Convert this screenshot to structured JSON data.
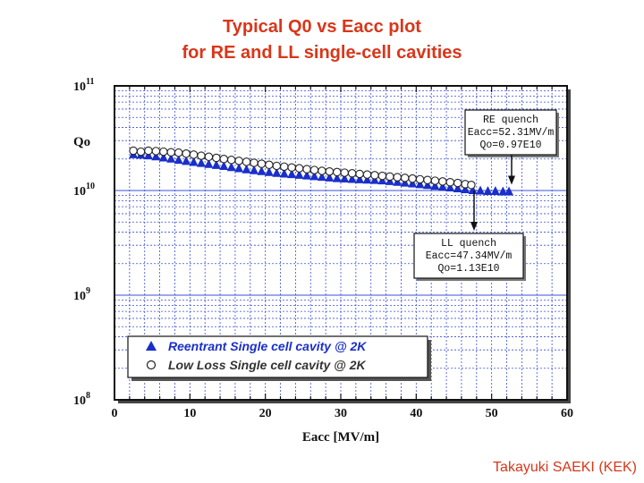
{
  "slide": {
    "title_line1": "Typical Q0 vs Eacc plot",
    "title_line2": "for RE and LL single-cell cavities",
    "credit": "Takayuki SAEKI (KEK)"
  },
  "colors": {
    "title": "#d9361a",
    "grid": "#3b4fd8",
    "reentrant_marker": "#1a2fc9",
    "lowloss_marker_fill": "#ffffff",
    "lowloss_legend_text": "#333333",
    "reentrant_legend_text": "#1a2fc9"
  },
  "chart_data": {
    "type": "scatter",
    "y_scale": "log",
    "xlabel": "Eacc [MV/m]",
    "ylabel": "Qo",
    "xlim": [
      0,
      60
    ],
    "ylim": [
      100000000.0,
      100000000000.0
    ],
    "x_ticks": [
      "0",
      "10",
      "20",
      "30",
      "40",
      "50",
      "60"
    ],
    "y_ticks": [
      {
        "base": "10",
        "exp": "11",
        "value": 100000000000.0
      },
      {
        "base": "10",
        "exp": "10",
        "value": 10000000000.0
      },
      {
        "base": "10",
        "exp": "9",
        "value": 1000000000.0
      },
      {
        "base": "10",
        "exp": "8",
        "value": 100000000.0
      }
    ],
    "grid": true,
    "series": [
      {
        "name": "Reentrant Single cell cavity @ 2K",
        "marker": "triangle",
        "x": [
          2.5,
          3.5,
          4.5,
          5.5,
          6.5,
          7.5,
          8.5,
          9.5,
          10.5,
          11.5,
          12.5,
          13.5,
          14.5,
          15.5,
          16.5,
          17.5,
          18.5,
          19.5,
          20.5,
          21.5,
          22.5,
          23.5,
          24.5,
          25.5,
          26.5,
          27.5,
          28.5,
          29.5,
          30.5,
          31.5,
          32.5,
          33.5,
          34.5,
          35.5,
          36.5,
          37.5,
          38.5,
          39.5,
          40.5,
          41.5,
          42.5,
          43.5,
          44.5,
          45.5,
          46.5,
          47.5,
          48.5,
          49.5,
          50.5,
          51.5,
          52.3
        ],
        "y": [
          22000000000.0,
          21800000000.0,
          21500000000.0,
          21000000000.0,
          20500000000.0,
          20000000000.0,
          19500000000.0,
          19000000000.0,
          18600000000.0,
          18200000000.0,
          17800000000.0,
          17400000000.0,
          17000000000.0,
          16600000000.0,
          16200000000.0,
          15800000000.0,
          15500000000.0,
          15200000000.0,
          14900000000.0,
          14600000000.0,
          14400000000.0,
          14200000000.0,
          14000000000.0,
          13800000000.0,
          13600000000.0,
          13400000000.0,
          13200000000.0,
          13000000000.0,
          12900000000.0,
          12800000000.0,
          12700000000.0,
          12600000000.0,
          12500000000.0,
          12400000000.0,
          12200000000.0,
          12000000000.0,
          11800000000.0,
          11600000000.0,
          11400000000.0,
          11200000000.0,
          11000000000.0,
          10800000000.0,
          10600000000.0,
          10400000000.0,
          10200000000.0,
          10000000000.0,
          9900000000.0,
          9800000000.0,
          9800000000.0,
          9700000000.0,
          9700000000.0
        ]
      },
      {
        "name": "Low Loss  Single cell cavity @ 2K",
        "marker": "circle",
        "x": [
          2.5,
          3.5,
          4.5,
          5.5,
          6.5,
          7.5,
          8.5,
          9.5,
          10.5,
          11.5,
          12.5,
          13.5,
          14.5,
          15.5,
          16.5,
          17.5,
          18.5,
          19.5,
          20.5,
          21.5,
          22.5,
          23.5,
          24.5,
          25.5,
          26.5,
          27.5,
          28.5,
          29.5,
          30.5,
          31.5,
          32.5,
          33.5,
          34.5,
          35.5,
          36.5,
          37.5,
          38.5,
          39.5,
          40.5,
          41.5,
          42.5,
          43.5,
          44.5,
          45.5,
          46.5,
          47.3
        ],
        "y": [
          24000000000.0,
          23500000000.0,
          24000000000.0,
          23800000000.0,
          23500000000.0,
          23200000000.0,
          23000000000.0,
          22500000000.0,
          22000000000.0,
          21500000000.0,
          21000000000.0,
          20500000000.0,
          20000000000.0,
          19600000000.0,
          19200000000.0,
          18800000000.0,
          18400000000.0,
          18000000000.0,
          17600000000.0,
          17200000000.0,
          16900000000.0,
          16600000000.0,
          16300000000.0,
          16000000000.0,
          15700000000.0,
          15400000000.0,
          15200000000.0,
          15000000000.0,
          14800000000.0,
          14600000000.0,
          14400000000.0,
          14200000000.0,
          14000000000.0,
          13800000000.0,
          13600000000.0,
          13400000000.0,
          13200000000.0,
          13000000000.0,
          12800000000.0,
          12600000000.0,
          12400000000.0,
          12200000000.0,
          12000000000.0,
          11800000000.0,
          11500000000.0,
          11300000000.0
        ]
      }
    ],
    "annotations": [
      {
        "name": "re-quench",
        "lines": [
          "RE quench",
          "Eacc=52.31MV/m",
          "Qo=0.97E10"
        ],
        "points_to": {
          "x": 52.3,
          "y": 9700000000.0
        }
      },
      {
        "name": "ll-quench",
        "lines": [
          "LL quench",
          "Eacc=47.34MV/m",
          "Qo=1.13E10"
        ],
        "points_to": {
          "x": 47.3,
          "y": 11300000000.0
        }
      }
    ],
    "legend": {
      "position": "bottom-left",
      "entries": [
        "Reentrant Single cell cavity @ 2K",
        "Low Loss  Single cell cavity @ 2K"
      ]
    }
  }
}
